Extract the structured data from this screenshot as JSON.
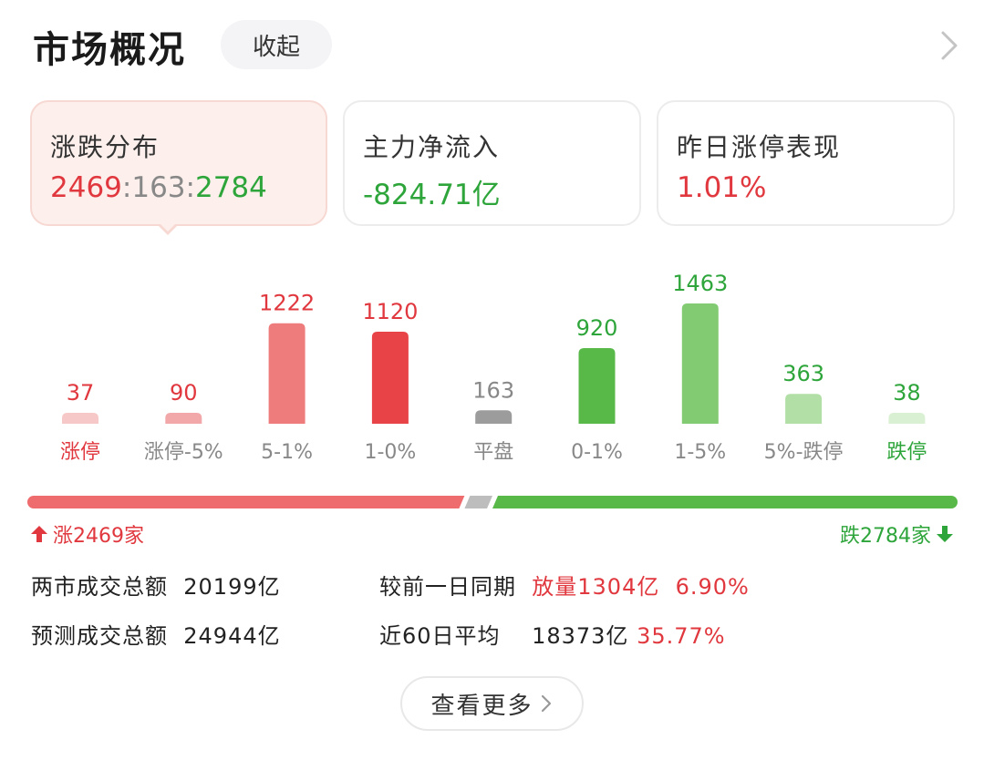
{
  "header": {
    "title": "市场概况",
    "collapse_label": "收起"
  },
  "tabs": [
    {
      "label": "涨跌分布",
      "up": "2469",
      "sep1": ":",
      "flat": "163",
      "sep2": ":",
      "down": "2784"
    },
    {
      "label": "主力净流入",
      "value": "-824.71亿"
    },
    {
      "label": "昨日涨停表现",
      "value": "1.01%"
    }
  ],
  "chart_data": {
    "type": "bar",
    "categories": [
      "涨停",
      "涨停-5%",
      "5-1%",
      "1-0%",
      "平盘",
      "0-1%",
      "1-5%",
      "5%-跌停",
      "跌停"
    ],
    "values": [
      37,
      90,
      1222,
      1120,
      163,
      920,
      1463,
      363,
      38
    ],
    "colors": [
      "#f6c8c8",
      "#f2a7a9",
      "#ee7c7d",
      "#e84448",
      "#9c9c9c",
      "#58b949",
      "#82cb72",
      "#b2dfa5",
      "#daf0d3"
    ],
    "label_colors": [
      "#e0383e",
      "#e0383e",
      "#e0383e",
      "#e0383e",
      "#888888",
      "#2ea53a",
      "#2ea53a",
      "#2ea53a",
      "#2ea53a"
    ],
    "category_colors": [
      "#e0383e",
      "#888888",
      "#888888",
      "#888888",
      "#888888",
      "#888888",
      "#888888",
      "#888888",
      "#2ea53a"
    ]
  },
  "summary": {
    "up_text": "涨2469家",
    "down_text": "跌2784家",
    "up_share": 0.47,
    "flat_share": 0.03,
    "down_share": 0.5
  },
  "stats": {
    "total_label": "两市成交总额",
    "total_value": "20199亿",
    "compare_label": "较前一日同期",
    "compare_value": "放量1304亿",
    "compare_pct": "6.90%",
    "forecast_label": "预测成交总额",
    "forecast_value": "24944亿",
    "avg_label": "近60日平均",
    "avg_value": "18373亿",
    "avg_pct": "35.77%"
  },
  "more_label": "查看更多",
  "colors": {
    "up": "#e0383e",
    "down": "#2ea53a",
    "flat": "#888888"
  }
}
